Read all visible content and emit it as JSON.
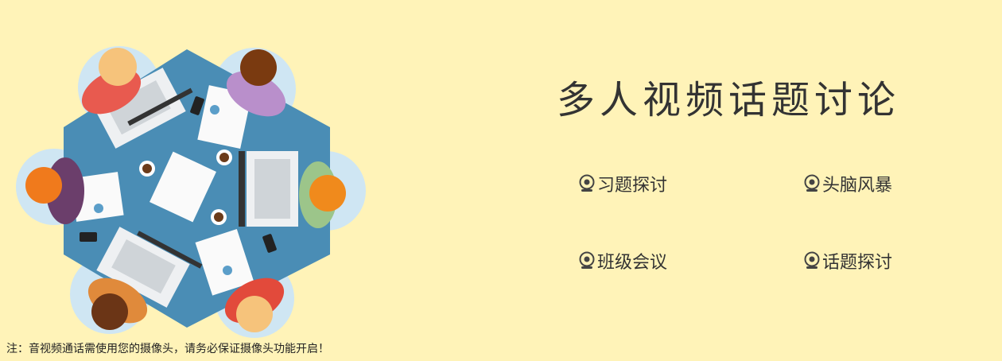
{
  "banner": {
    "title": "多人视频话题讨论",
    "features": [
      {
        "label": "习题探讨",
        "icon": "webcam-icon"
      },
      {
        "label": "头脑风暴",
        "icon": "webcam-icon"
      },
      {
        "label": "班级会议",
        "icon": "webcam-icon"
      },
      {
        "label": "话题探讨",
        "icon": "webcam-icon"
      }
    ],
    "note": "注：音视频通话需使用您的摄像头，请务必保证摄像头功能开启！",
    "illustration_icon": "meeting-table-illustration",
    "colors": {
      "background": "#fff3b8",
      "table": "#4a8db5",
      "text": "#333333"
    }
  }
}
